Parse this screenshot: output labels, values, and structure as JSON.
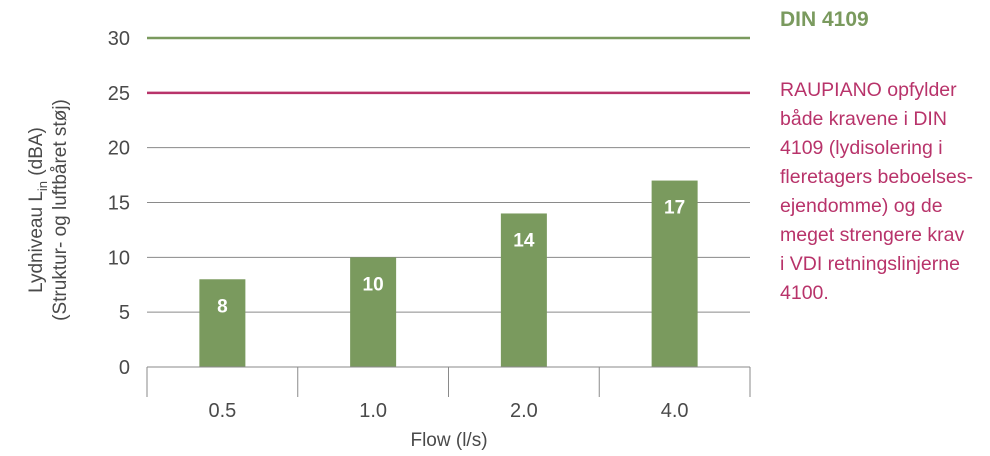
{
  "chart_data": {
    "type": "bar",
    "categories": [
      "0.5",
      "1.0",
      "2.0",
      "4.0"
    ],
    "values": [
      8,
      10,
      14,
      17
    ],
    "data_labels": [
      "8",
      "10",
      "14",
      "17"
    ],
    "xlabel": "Flow (l/s)",
    "ylabel_line1_prefix": "Lydniveau L",
    "ylabel_line1_sub": "in",
    "ylabel_line1_suffix": " (dBA)",
    "ylabel_line2": "(Struktur- og luftbåret støj)",
    "ylim": [
      0,
      30
    ],
    "yticks": [
      "0",
      "5",
      "10",
      "15",
      "20",
      "25",
      "30"
    ],
    "grid": true,
    "bar_color": "#7a9a5e",
    "reference_lines": [
      {
        "value": 30,
        "color": "#7a9a5e"
      },
      {
        "value": 25,
        "color": "#b8336a"
      }
    ]
  },
  "annotations": {
    "din_label": "DIN 4109",
    "din_color": "#7a9a5e",
    "raupiano_lines": [
      "RAUPIANO opfylder",
      "både kravene i DIN",
      "4109 (lydisolering i",
      "fleretagers beboelses-",
      "ejendomme) og de",
      "meget strengere krav",
      "i VDI retningslinjerne",
      "4100."
    ],
    "raupiano_color": "#b8336a"
  }
}
